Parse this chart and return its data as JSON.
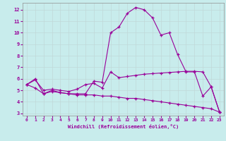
{
  "xlabel": "Windchill (Refroidissement éolien,°C)",
  "background_color": "#c8ecec",
  "grid_color": "#c0d8d8",
  "line_color": "#990099",
  "x": [
    0,
    1,
    2,
    3,
    4,
    5,
    6,
    7,
    8,
    9,
    10,
    11,
    12,
    13,
    14,
    15,
    16,
    17,
    18,
    19,
    20,
    21,
    22,
    23
  ],
  "line1": [
    5.5,
    6.0,
    4.7,
    5.0,
    4.8,
    4.7,
    4.7,
    4.7,
    5.8,
    5.7,
    10.0,
    10.5,
    11.7,
    12.2,
    12.0,
    11.3,
    9.8,
    10.0,
    8.1,
    6.6,
    6.6,
    4.5,
    5.3,
    3.1
  ],
  "line2": [
    5.5,
    5.9,
    5.0,
    5.1,
    5.0,
    4.9,
    5.1,
    5.5,
    5.6,
    5.2,
    6.6,
    6.1,
    6.2,
    6.3,
    6.4,
    6.45,
    6.5,
    6.55,
    6.6,
    6.65,
    6.65,
    6.6,
    5.3,
    3.1
  ],
  "line3": [
    5.5,
    5.2,
    4.7,
    4.9,
    4.8,
    4.7,
    4.6,
    4.6,
    4.6,
    4.5,
    4.5,
    4.4,
    4.3,
    4.3,
    4.2,
    4.1,
    4.0,
    3.9,
    3.8,
    3.7,
    3.6,
    3.5,
    3.4,
    3.1
  ],
  "ylim": [
    2.8,
    12.6
  ],
  "xlim": [
    -0.5,
    23.5
  ],
  "yticks": [
    3,
    4,
    5,
    6,
    7,
    8,
    9,
    10,
    11,
    12
  ],
  "xticks": [
    0,
    1,
    2,
    3,
    4,
    5,
    6,
    7,
    8,
    9,
    10,
    11,
    12,
    13,
    14,
    15,
    16,
    17,
    18,
    19,
    20,
    21,
    22,
    23
  ]
}
